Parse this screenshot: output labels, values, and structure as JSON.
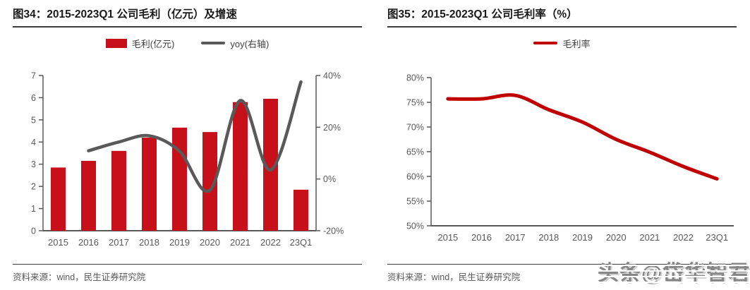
{
  "panels": [
    {
      "title": "图34：2015-2023Q1 公司毛利（亿元）及增速",
      "legend": [
        {
          "label": "毛利(亿元)",
          "swatch": "bar",
          "color": "#c8101b"
        },
        {
          "label": "yoy(右轴)",
          "swatch": "line",
          "color": "#595959"
        }
      ],
      "source": "资料来源：wind，民生证券研究院"
    },
    {
      "title": "图35：2015-2023Q1 公司毛利率（%）",
      "legend": [
        {
          "label": "毛利率",
          "swatch": "line",
          "color": "#c00000"
        }
      ],
      "source": "资料来源：wind，民生证券研究院"
    }
  ],
  "watermark": {
    "text": "头条@岱华智君"
  },
  "colors": {
    "bar_red": "#c8101b",
    "line_gray": "#595959",
    "line_red": "#c00000",
    "axis": "#595959",
    "tick_text": "#595959"
  },
  "chart_data": [
    {
      "type": "bar",
      "title": "图34：2015-2023Q1 公司毛利（亿元）及增速",
      "categories": [
        "2015",
        "2016",
        "2017",
        "2018",
        "2019",
        "2020",
        "2021",
        "2022",
        "23Q1"
      ],
      "series": [
        {
          "name": "毛利(亿元)",
          "type": "bar",
          "axis": "left",
          "color": "#c8101b",
          "values": [
            2.85,
            3.15,
            3.6,
            4.2,
            4.65,
            4.45,
            5.8,
            5.95,
            1.85
          ]
        },
        {
          "name": "yoy(右轴)",
          "type": "line",
          "axis": "right",
          "color": "#595959",
          "values": [
            null,
            10.9,
            14.3,
            16.7,
            10.7,
            -4.3,
            30.3,
            3.5,
            37.5
          ]
        }
      ],
      "left_axis": {
        "min": 0,
        "max": 7,
        "step": 1,
        "ticks": [
          "0",
          "1",
          "2",
          "3",
          "4",
          "5",
          "6",
          "7"
        ]
      },
      "right_axis": {
        "min": -20,
        "max": 40,
        "step": 20,
        "ticks": [
          "-20%",
          "0%",
          "20%",
          "40%"
        ]
      },
      "grid": false,
      "legend_position": "top"
    },
    {
      "type": "line",
      "title": "图35：2015-2023Q1 公司毛利率（%）",
      "categories": [
        "2015",
        "2016",
        "2017",
        "2018",
        "2019",
        "2020",
        "2021",
        "2022",
        "23Q1"
      ],
      "series": [
        {
          "name": "毛利率",
          "type": "line",
          "axis": "left",
          "color": "#c00000",
          "values": [
            75.7,
            75.7,
            76.4,
            73.5,
            71.0,
            67.5,
            64.9,
            62.0,
            59.5
          ]
        }
      ],
      "left_axis": {
        "min": 50,
        "max": 80,
        "step": 5,
        "ticks": [
          "50%",
          "55%",
          "60%",
          "65%",
          "70%",
          "75%",
          "80%"
        ]
      },
      "grid": false,
      "legend_position": "top"
    }
  ]
}
